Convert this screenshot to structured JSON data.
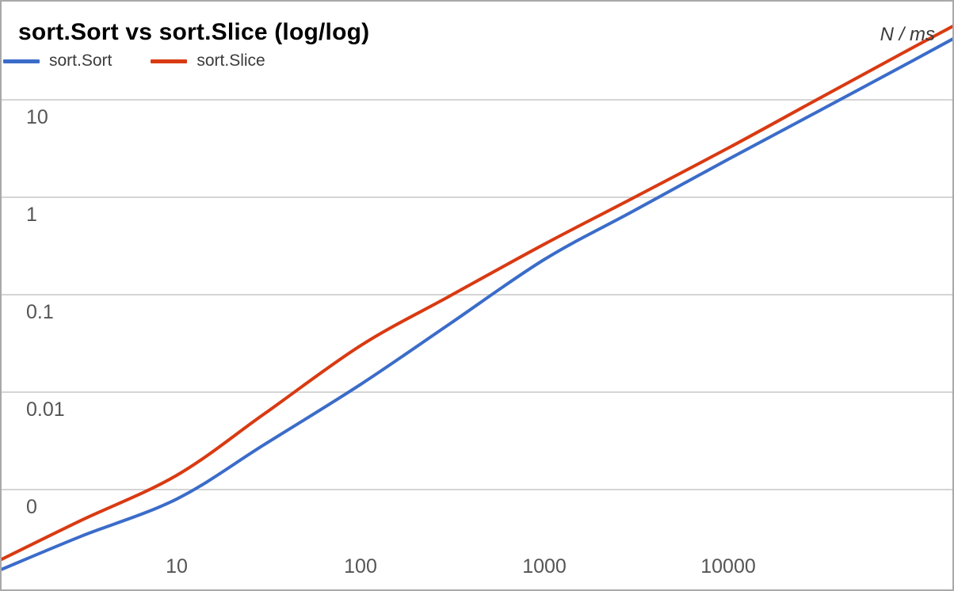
{
  "chart_data": {
    "type": "line",
    "title": "sort.Sort vs sort.Slice (log/log)",
    "corner_label": "N / ms",
    "xlabel": "N",
    "ylabel": "ms",
    "x_scale": "log",
    "y_scale": "log",
    "grid": "horizontal-only",
    "legend_position": "top-left",
    "gridline_color": "#D5D5D5",
    "axis_text_color": "#555555",
    "x_ticks": [
      {
        "value": 10,
        "label": "10"
      },
      {
        "value": 100,
        "label": "100"
      },
      {
        "value": 1000,
        "label": "1000"
      },
      {
        "value": 10000,
        "label": "10000"
      }
    ],
    "y_ticks": [
      {
        "value": 10,
        "label": "10"
      },
      {
        "value": 1,
        "label": "1"
      },
      {
        "value": 0.1,
        "label": "0.1"
      },
      {
        "value": 0.01,
        "label": "0.01"
      },
      {
        "value": 0.001,
        "label": "0"
      }
    ],
    "x_range": [
      1.1,
      170000
    ],
    "y_range_ms": [
      0.0001,
      60
    ],
    "series": [
      {
        "name": "sort.Sort",
        "color": "#3B6CC9",
        "points": [
          [
            1.1,
            0.00015
          ],
          [
            3,
            0.00033
          ],
          [
            10,
            0.0008
          ],
          [
            30,
            0.0029
          ],
          [
            100,
            0.012
          ],
          [
            300,
            0.049
          ],
          [
            1000,
            0.23
          ],
          [
            3000,
            0.71
          ],
          [
            10000,
            2.45
          ],
          [
            30000,
            7.4
          ],
          [
            100000,
            25
          ],
          [
            170000,
            43
          ]
        ]
      },
      {
        "name": "sort.Slice",
        "color": "#D93A12",
        "points": [
          [
            1.1,
            0.00019
          ],
          [
            3,
            0.00048
          ],
          [
            10,
            0.0014
          ],
          [
            30,
            0.006
          ],
          [
            100,
            0.03
          ],
          [
            300,
            0.095
          ],
          [
            1000,
            0.33
          ],
          [
            3000,
            0.97
          ],
          [
            10000,
            3.2
          ],
          [
            30000,
            9.9
          ],
          [
            100000,
            34
          ],
          [
            170000,
            58
          ]
        ]
      }
    ]
  }
}
